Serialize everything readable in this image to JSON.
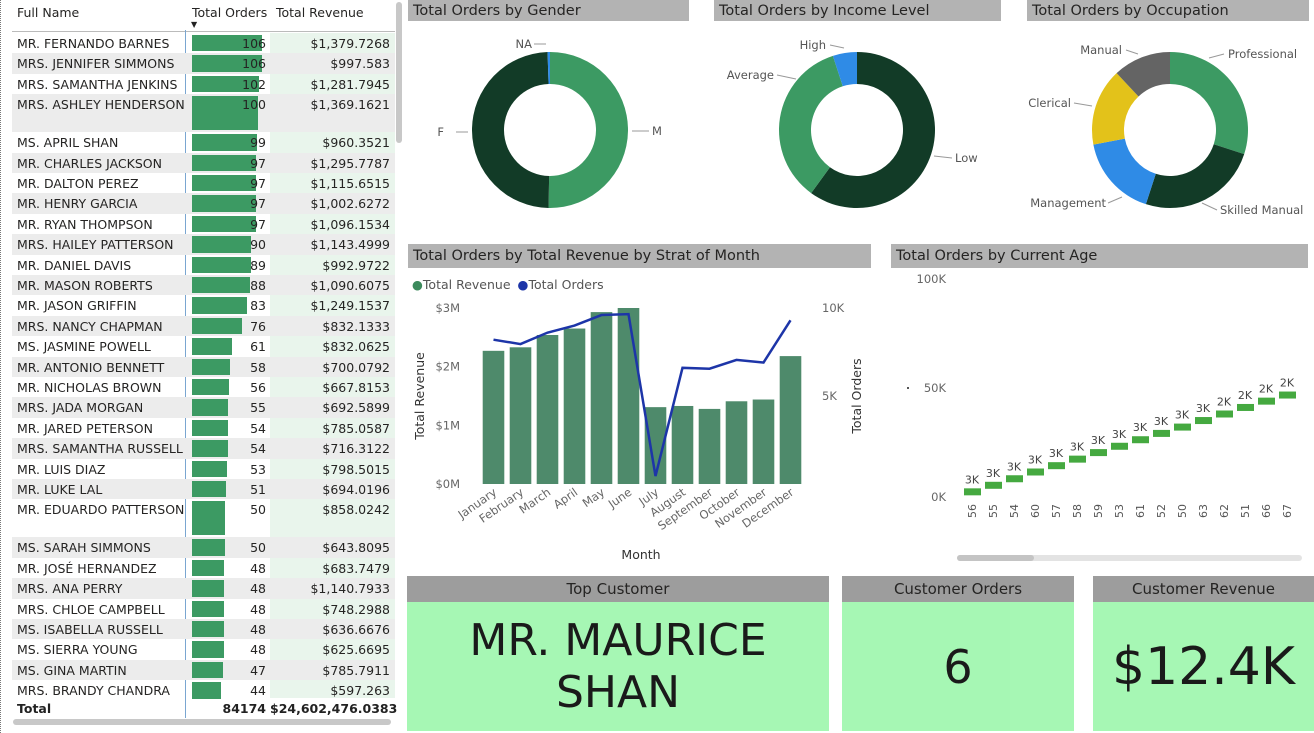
{
  "table": {
    "headers": {
      "name": "Full Name",
      "orders": "Total Orders",
      "revenue": "Total Revenue"
    },
    "sort_icon": "sort-descending-icon",
    "rows": [
      {
        "name": "MR. FERNANDO BARNES",
        "orders": 106,
        "orders_text": "106",
        "revenue": "$1,379.7268"
      },
      {
        "name": "MRS. JENNIFER SIMMONS",
        "orders": 106,
        "orders_text": "106",
        "revenue": "$997.583"
      },
      {
        "name": "MRS. SAMANTHA JENKINS",
        "orders": 102,
        "orders_text": "102",
        "revenue": "$1,281.7945"
      },
      {
        "name": "MRS. ASHLEY HENDERSON",
        "orders": 100,
        "orders_text": "100",
        "revenue": "$1,369.1621"
      },
      {
        "name": "MS. APRIL SHAN",
        "orders": 99,
        "orders_text": "99",
        "revenue": "$960.3521"
      },
      {
        "name": "MR. CHARLES JACKSON",
        "orders": 97,
        "orders_text": "97",
        "revenue": "$1,295.7787"
      },
      {
        "name": "MR. DALTON PEREZ",
        "orders": 97,
        "orders_text": "97",
        "revenue": "$1,115.6515"
      },
      {
        "name": "MR. HENRY GARCIA",
        "orders": 97,
        "orders_text": "97",
        "revenue": "$1,002.6272"
      },
      {
        "name": "MR. RYAN THOMPSON",
        "orders": 97,
        "orders_text": "97",
        "revenue": "$1,096.1534"
      },
      {
        "name": "MRS. HAILEY PATTERSON",
        "orders": 90,
        "orders_text": "90",
        "revenue": "$1,143.4999"
      },
      {
        "name": "MR. DANIEL DAVIS",
        "orders": 89,
        "orders_text": "89",
        "revenue": "$992.9722"
      },
      {
        "name": "MR. MASON ROBERTS",
        "orders": 88,
        "orders_text": "88",
        "revenue": "$1,090.6075"
      },
      {
        "name": "MR. JASON GRIFFIN",
        "orders": 83,
        "orders_text": "83",
        "revenue": "$1,249.1537"
      },
      {
        "name": "MRS. NANCY CHAPMAN",
        "orders": 76,
        "orders_text": "76",
        "revenue": "$832.1333"
      },
      {
        "name": "MS. JASMINE POWELL",
        "orders": 61,
        "orders_text": "61",
        "revenue": "$832.0625"
      },
      {
        "name": "MR. ANTONIO BENNETT",
        "orders": 58,
        "orders_text": "58",
        "revenue": "$700.0792"
      },
      {
        "name": "MR. NICHOLAS BROWN",
        "orders": 56,
        "orders_text": "56",
        "revenue": "$667.8153"
      },
      {
        "name": "MRS. JADA MORGAN",
        "orders": 55,
        "orders_text": "55",
        "revenue": "$692.5899"
      },
      {
        "name": "MR. JARED PETERSON",
        "orders": 54,
        "orders_text": "54",
        "revenue": "$785.0587"
      },
      {
        "name": "MRS. SAMANTHA RUSSELL",
        "orders": 54,
        "orders_text": "54",
        "revenue": "$716.3122"
      },
      {
        "name": "MR. LUIS DIAZ",
        "orders": 53,
        "orders_text": "53",
        "revenue": "$798.5015"
      },
      {
        "name": "MR. LUKE LAL",
        "orders": 51,
        "orders_text": "51",
        "revenue": "$694.0196"
      },
      {
        "name": "MR. EDUARDO PATTERSON",
        "orders": 50,
        "orders_text": "50",
        "revenue": "$858.0242"
      },
      {
        "name": "MS. SARAH SIMMONS",
        "orders": 50,
        "orders_text": "50",
        "revenue": "$643.8095"
      },
      {
        "name": "MR. JOSÉ HERNANDEZ",
        "orders": 48,
        "orders_text": "48",
        "revenue": "$683.7479"
      },
      {
        "name": "MRS. ANA PERRY",
        "orders": 48,
        "orders_text": "48",
        "revenue": "$1,140.7933"
      },
      {
        "name": "MRS. CHLOE CAMPBELL",
        "orders": 48,
        "orders_text": "48",
        "revenue": "$748.2988"
      },
      {
        "name": "MS. ISABELLA RUSSELL",
        "orders": 48,
        "orders_text": "48",
        "revenue": "$636.6676"
      },
      {
        "name": "MS. SIERRA YOUNG",
        "orders": 48,
        "orders_text": "48",
        "revenue": "$625.6695"
      },
      {
        "name": "MS. GINA MARTIN",
        "orders": 47,
        "orders_text": "47",
        "revenue": "$785.7911"
      },
      {
        "name": "MRS. BRANDY CHANDRA",
        "orders": 44,
        "orders_text": "44",
        "revenue": "$597.263"
      }
    ],
    "total": {
      "label": "Total",
      "orders": "84174",
      "revenue": "$24,602,476.0383"
    }
  },
  "titles": {
    "gender": "Total Orders by Gender",
    "income": "Total Orders by Income Level",
    "occupation": "Total Orders by Occupation",
    "month": "Total Orders by Total Revenue by Strat of Month",
    "age": "Total Orders by Current Age"
  },
  "chart_data": [
    {
      "type": "pie",
      "title": "Total Orders by Gender",
      "slices": [
        {
          "label": "M",
          "value": 50.3,
          "color": "#3c9a63"
        },
        {
          "label": "F",
          "value": 49.2,
          "color": "#123b27"
        },
        {
          "label": "NA",
          "value": 0.5,
          "color": "#2f8be6"
        }
      ]
    },
    {
      "type": "pie",
      "title": "Total Orders by Income Level",
      "slices": [
        {
          "label": "Low",
          "value": 60,
          "color": "#123b27"
        },
        {
          "label": "Average",
          "value": 35,
          "color": "#3c9a63"
        },
        {
          "label": "High",
          "value": 5,
          "color": "#2f8be6"
        }
      ]
    },
    {
      "type": "pie",
      "title": "Total Orders by Occupation",
      "slices": [
        {
          "label": "Professional",
          "value": 30,
          "color": "#3c9a63"
        },
        {
          "label": "Skilled Manual",
          "value": 25,
          "color": "#123b27"
        },
        {
          "label": "Management",
          "value": 17,
          "color": "#2f8be6"
        },
        {
          "label": "Clerical",
          "value": 16,
          "color": "#e3c21a"
        },
        {
          "label": "Manual",
          "value": 12,
          "color": "#646464"
        }
      ]
    },
    {
      "type": "bar",
      "title": "Total Orders by Total Revenue by Strat of Month",
      "legend": [
        "Total Revenue",
        "Total Orders"
      ],
      "xlabel": "Month",
      "ylabel": "Total Revenue",
      "y2label": "Total Orders",
      "categories": [
        "January",
        "February",
        "March",
        "April",
        "May",
        "June",
        "July",
        "August",
        "September",
        "October",
        "November",
        "December"
      ],
      "series": [
        {
          "name": "Total Revenue",
          "values": [
            2.27,
            2.33,
            2.54,
            2.65,
            2.93,
            3.0,
            1.31,
            1.33,
            1.28,
            1.41,
            1.44,
            2.18
          ],
          "color": "#4e8a6b"
        },
        {
          "name": "Total Orders",
          "values": [
            8200,
            7950,
            8600,
            9000,
            9600,
            9650,
            450,
            6600,
            6550,
            7050,
            6900,
            9300
          ],
          "color": "#1d35a8"
        }
      ],
      "y_ticks": [
        "$0M",
        "$1M",
        "$2M",
        "$3M"
      ],
      "y2_ticks": [
        "5K",
        "10K"
      ],
      "ylim": [
        0,
        3.2
      ],
      "y2lim": [
        0,
        11500
      ]
    },
    {
      "type": "line",
      "title": "Total Orders by Current Age",
      "ylabel": "Total Orders",
      "y_ticks": [
        "0K",
        "50K",
        "100K"
      ],
      "ylim": [
        0,
        100
      ],
      "categories": [
        "56",
        "55",
        "54",
        "60",
        "57",
        "58",
        "59",
        "53",
        "61",
        "52",
        "50",
        "63",
        "62",
        "51",
        "66",
        "67"
      ],
      "values": [
        2.6,
        5.6,
        8.6,
        11.7,
        14.6,
        17.6,
        20.6,
        23.5,
        26.5,
        29.4,
        32.3,
        35.3,
        38.3,
        41.3,
        44.2,
        47.0
      ],
      "data_labels": [
        "3K",
        "3K",
        "3K",
        "3K",
        "3K",
        "3K",
        "3K",
        "3K",
        "3K",
        "3K",
        "3K",
        "3K",
        "2K",
        "2K",
        "2K",
        "2K"
      ],
      "color": "#45a940"
    }
  ],
  "cards": {
    "top_customer": {
      "label": "Top Customer",
      "value": "MR. MAURICE SHAN"
    },
    "customer_orders": {
      "label": "Customer Orders",
      "value": "6"
    },
    "customer_revenue": {
      "label": "Customer Revenue",
      "value": "$12.4K"
    }
  }
}
